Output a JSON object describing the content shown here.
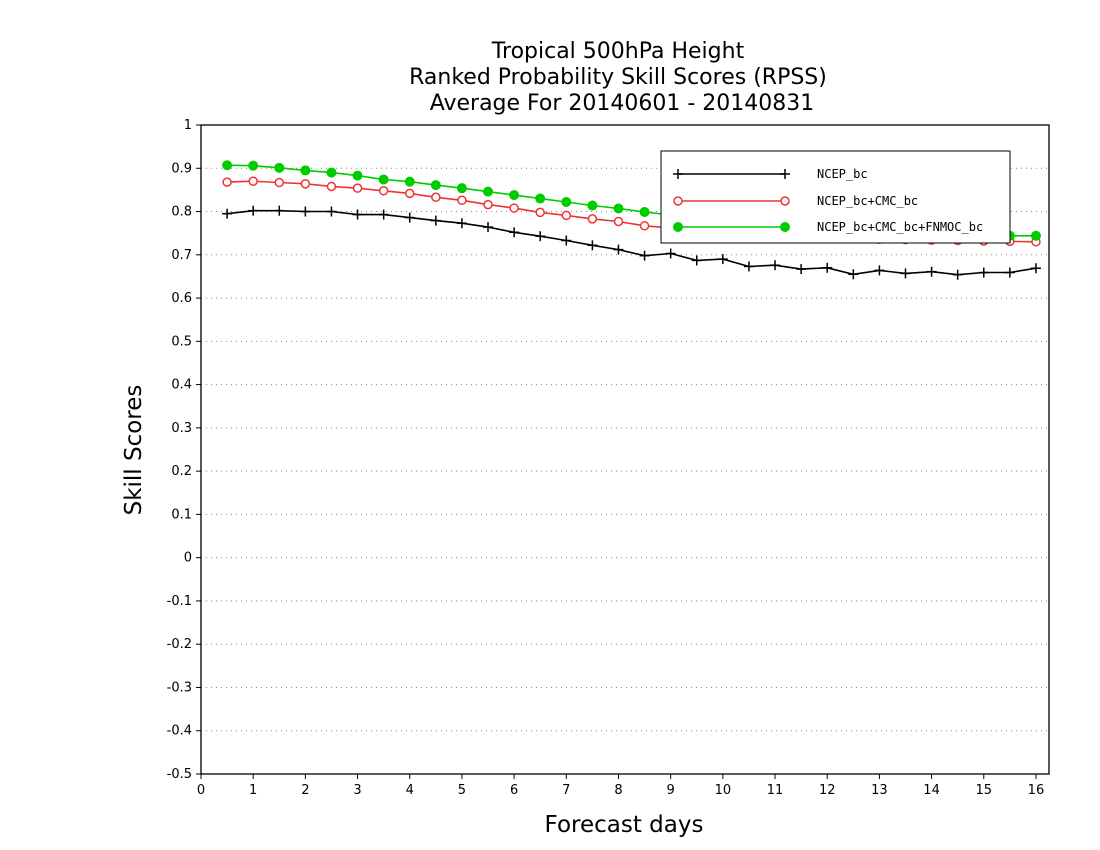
{
  "chart_data": {
    "type": "line",
    "title": "Tropical 500hPa Height",
    "subtitle": "Ranked Probability Skill Scores (RPSS)",
    "subtitle2": "Average For 20140601 - 20140831",
    "xlabel": "Forecast days",
    "ylabel": "Skill Scores",
    "xlim": [
      0,
      16.25
    ],
    "ylim": [
      -0.5,
      1
    ],
    "xticks": [
      0,
      1,
      2,
      3,
      4,
      5,
      6,
      7,
      8,
      9,
      10,
      11,
      12,
      13,
      14,
      15,
      16
    ],
    "yticks": [
      -0.5,
      -0.4,
      -0.3,
      -0.2,
      -0.1,
      0,
      0.1,
      0.2,
      0.3,
      0.4,
      0.5,
      0.6,
      0.7,
      0.8,
      0.9,
      1
    ],
    "ytick_labels": [
      "-0.5",
      "-0.4",
      "-0.3",
      "-0.2",
      "-0.1",
      "0",
      "0.1",
      "0.2",
      "0.3",
      "0.4",
      "0.5",
      "0.6",
      "0.7",
      "0.8",
      "0.9",
      "1"
    ],
    "grid": "dotted horizontal",
    "legend_position": "top-right",
    "x": [
      0.5,
      1,
      1.5,
      2,
      2.5,
      3,
      3.5,
      4,
      4.5,
      5,
      5.5,
      6,
      6.5,
      7,
      7.5,
      8,
      8.5,
      9,
      9.5,
      10,
      10.5,
      11,
      11.5,
      12,
      12.5,
      13,
      13.5,
      14,
      14.5,
      15,
      15.5,
      16
    ],
    "series": [
      {
        "name": "NCEP_bc",
        "color": "#000000",
        "marker": "plus",
        "values": [
          0.795,
          0.802,
          0.802,
          0.8,
          0.8,
          0.793,
          0.793,
          0.786,
          0.779,
          0.773,
          0.764,
          0.752,
          0.743,
          0.733,
          0.722,
          0.712,
          0.698,
          0.703,
          0.687,
          0.69,
          0.673,
          0.676,
          0.667,
          0.67,
          0.655,
          0.664,
          0.657,
          0.661,
          0.654,
          0.659,
          0.659,
          0.669
        ]
      },
      {
        "name": "NCEP_bc+CMC_bc",
        "color": "#ee3333",
        "marker": "open-circle",
        "values": [
          0.868,
          0.87,
          0.867,
          0.864,
          0.858,
          0.854,
          0.848,
          0.842,
          0.833,
          0.826,
          0.816,
          0.808,
          0.798,
          0.791,
          0.783,
          0.777,
          0.767,
          0.762,
          0.756,
          0.752,
          0.748,
          0.745,
          0.742,
          0.74,
          0.738,
          0.736,
          0.735,
          0.734,
          0.733,
          0.732,
          0.731,
          0.73
        ]
      },
      {
        "name": "NCEP_bc+CMC_bc+FNMOC_bc",
        "color": "#00cc00",
        "marker": "filled-circle",
        "values": [
          0.907,
          0.906,
          0.901,
          0.895,
          0.89,
          0.883,
          0.874,
          0.869,
          0.861,
          0.854,
          0.846,
          0.838,
          0.83,
          0.822,
          0.814,
          0.807,
          0.799,
          0.792,
          0.786,
          0.78,
          0.774,
          0.769,
          0.764,
          0.76,
          0.756,
          0.753,
          0.75,
          0.748,
          0.746,
          0.745,
          0.744,
          0.744
        ]
      }
    ]
  }
}
